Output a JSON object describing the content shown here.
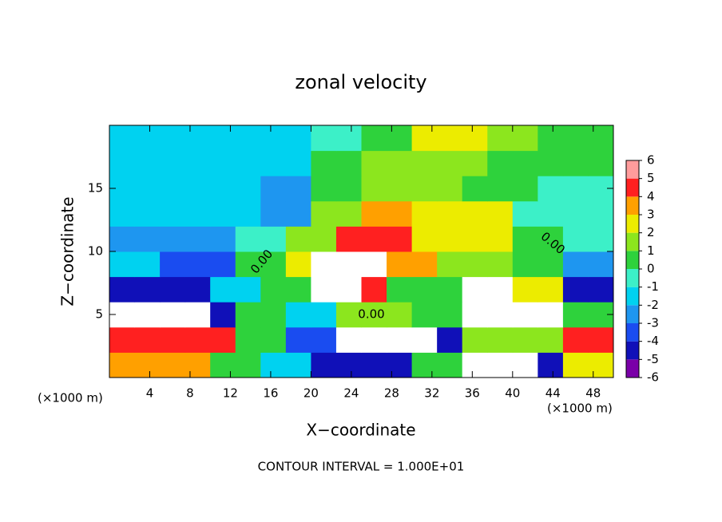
{
  "chart_data": {
    "type": "contour",
    "title": "zonal velocity",
    "x_label": "X−coordinate",
    "y_label": "Z−coordinate",
    "x_unit_label": "(×1000 m)",
    "footer": "CONTOUR INTERVAL = 1.000E+01",
    "contour_labels": [
      "0.00",
      "0.00",
      "0.00"
    ],
    "xlim": [
      0,
      50
    ],
    "ylim": [
      0,
      20
    ],
    "xticks": [
      4,
      8,
      12,
      16,
      20,
      24,
      28,
      32,
      36,
      40,
      44,
      48
    ],
    "yticks": [
      5,
      10,
      15
    ],
    "levels": [
      -6,
      -5,
      -4,
      -3,
      -2,
      -1,
      0,
      1,
      2,
      3,
      4,
      5,
      6
    ],
    "colors": [
      "#7a00a8",
      "#1010b8",
      "#1a4cf0",
      "#1e96f0",
      "#00d2f0",
      "#3cf0c8",
      "#2ed23c",
      "#8ce61e",
      "#ecec00",
      "#ffa000",
      "#ff2020",
      "#ff9c9c"
    ],
    "out_of_range_color": "#ffffff",
    "z": [
      [
        4,
        4,
        4,
        4,
        0.5,
        0.5,
        -1,
        -1,
        -4,
        -4,
        -4,
        -4,
        1,
        1,
        7,
        7,
        7,
        -4,
        3,
        3
      ],
      [
        5,
        5,
        5,
        5,
        5,
        1,
        1,
        -3,
        -3,
        7,
        7,
        7,
        7,
        -4,
        2,
        2,
        2,
        2,
        5,
        5
      ],
      [
        7,
        7,
        7,
        7,
        -4,
        1,
        1,
        -1,
        -1,
        2,
        2,
        2,
        1,
        1,
        7,
        7,
        7,
        7,
        1,
        1
      ],
      [
        -4,
        -4,
        -4,
        -4,
        -1,
        -1,
        1,
        1,
        7,
        7,
        5,
        1,
        1,
        1,
        7,
        7,
        3,
        3,
        -4,
        -4
      ],
      [
        -1.5,
        -1.5,
        -3,
        -3,
        -3,
        0.5,
        0.5,
        3,
        7,
        7,
        7,
        4,
        4,
        2,
        2,
        2,
        0.5,
        0.5,
        -2,
        -2
      ],
      [
        -2,
        -2,
        -2,
        -2,
        -2,
        -0.5,
        -0.5,
        2,
        2,
        5,
        5,
        5,
        3,
        3,
        3,
        3,
        0.5,
        0.5,
        -0.5,
        -0.5
      ],
      [
        -1.5,
        -1.5,
        -1.5,
        -1.5,
        -1.5,
        -1.5,
        -2,
        -2,
        1.5,
        1.5,
        4,
        4,
        2.5,
        2.5,
        2.5,
        2.5,
        0,
        0,
        0,
        0
      ],
      [
        -1.5,
        -1.5,
        -1.5,
        -1.5,
        -1.5,
        -1.5,
        -2.5,
        -2.5,
        0.5,
        0.5,
        2,
        2,
        2,
        2,
        1,
        1,
        1,
        -0.5,
        -0.5,
        -0.5
      ],
      [
        -1.5,
        -1.5,
        -1.5,
        -1.5,
        -1.5,
        -1.5,
        -1.5,
        -1.5,
        0.5,
        0.5,
        1.5,
        1.5,
        2,
        2,
        2,
        1,
        1,
        0.5,
        0.5,
        0.5
      ],
      [
        -1.5,
        -1.5,
        -1.5,
        -1.5,
        -1.5,
        -1.5,
        -1.5,
        -1.5,
        0,
        0,
        1,
        1,
        3,
        3,
        3,
        1.5,
        1.5,
        0.5,
        0.5,
        0.5
      ]
    ]
  }
}
